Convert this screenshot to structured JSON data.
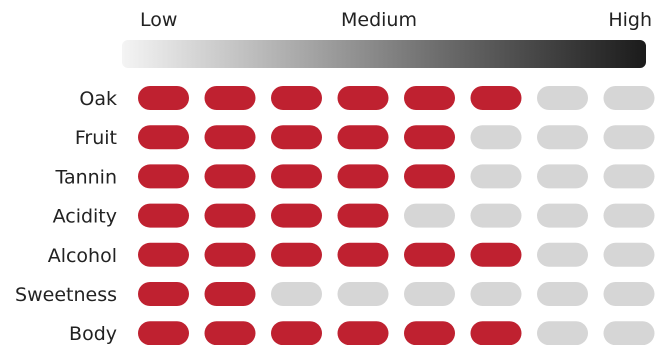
{
  "chart_data": {
    "type": "heatmap",
    "title": "",
    "scale": {
      "low": "Low",
      "medium": "Medium",
      "high": "High",
      "max": 8
    },
    "categories": [
      "Oak",
      "Fruit",
      "Tannin",
      "Acidity",
      "Alcohol",
      "Sweetness",
      "Body"
    ],
    "values": [
      6,
      5,
      5,
      4,
      6,
      2,
      6
    ],
    "colors": {
      "filled": "#bf2130",
      "empty": "#d6d6d6",
      "gradient_start": "#f4f4f4",
      "gradient_end": "#1b1b1b"
    }
  }
}
